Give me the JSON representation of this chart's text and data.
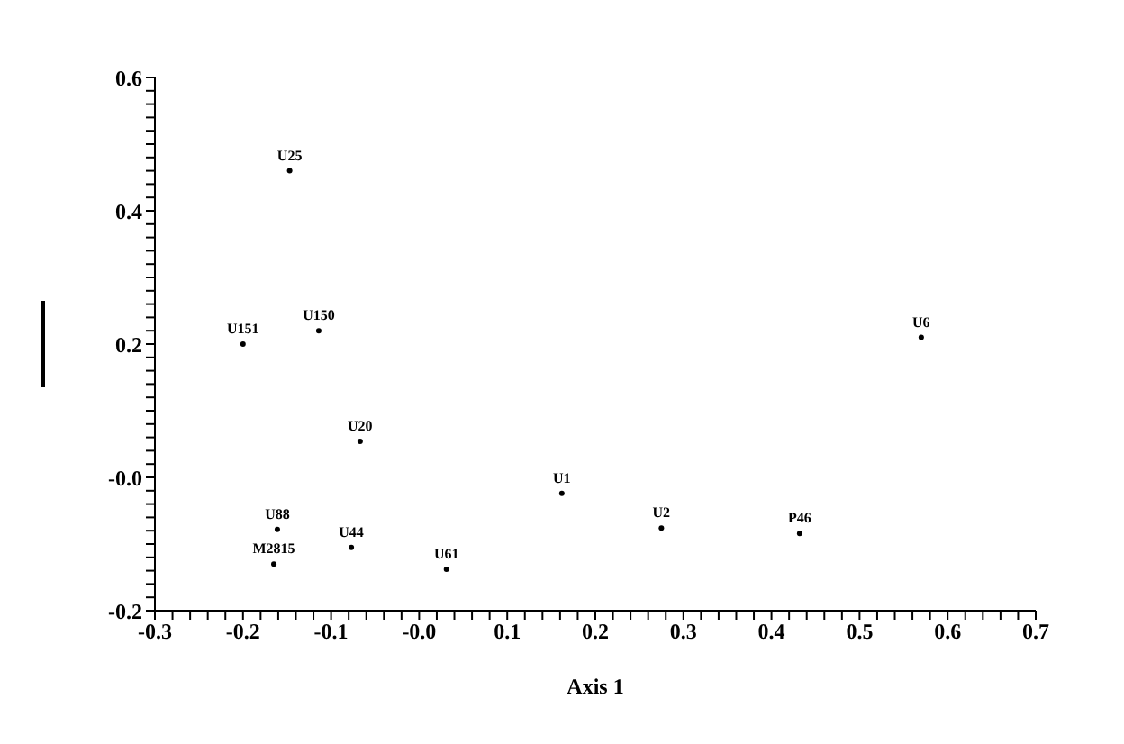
{
  "chart_data": {
    "type": "scatter",
    "xlabel": "Axis 1",
    "marker": "circle",
    "grid": false,
    "legend": false,
    "x": [
      -0.147,
      -0.114,
      -0.2,
      -0.067,
      0.57,
      0.162,
      0.275,
      0.432,
      -0.161,
      -0.165,
      -0.077,
      0.031
    ],
    "values": [
      0.46,
      0.22,
      0.2,
      0.054,
      0.21,
      -0.024,
      -0.076,
      -0.084,
      -0.078,
      -0.13,
      -0.105,
      -0.138
    ],
    "value_labels": [
      "U25",
      "U150",
      "U151",
      "U20",
      "U6",
      "U1",
      "U2",
      "P46",
      "U88",
      "M2815",
      "U44",
      "U61"
    ],
    "xlim": [
      -0.3,
      0.7
    ],
    "xticks": [
      -0.3,
      {
        "value": -0.28,
        "label": null
      },
      {
        "value": -0.26,
        "label": null
      },
      {
        "value": -0.24,
        "label": null
      },
      {
        "value": -0.22,
        "label": null
      },
      -0.2,
      {
        "value": -0.18,
        "label": null
      },
      {
        "value": -0.16,
        "label": null
      },
      {
        "value": -0.14,
        "label": null
      },
      {
        "value": -0.12,
        "label": null
      },
      -0.1,
      {
        "value": -0.08,
        "label": null
      },
      {
        "value": -0.06,
        "label": null
      },
      {
        "value": -0.04,
        "label": null
      },
      {
        "value": -0.02,
        "label": null
      },
      {
        "value": 0,
        "label": "-0.0"
      },
      {
        "value": 0.02,
        "label": null
      },
      {
        "value": 0.04,
        "label": null
      },
      {
        "value": 0.06,
        "label": null
      },
      {
        "value": 0.08,
        "label": null
      },
      0.1,
      {
        "value": 0.12,
        "label": null
      },
      {
        "value": 0.14,
        "label": null
      },
      {
        "value": 0.16,
        "label": null
      },
      {
        "value": 0.18,
        "label": null
      },
      0.2,
      {
        "value": 0.22,
        "label": null
      },
      {
        "value": 0.24,
        "label": null
      },
      {
        "value": 0.26,
        "label": null
      },
      {
        "value": 0.28,
        "label": null
      },
      0.3,
      {
        "value": 0.32,
        "label": null
      },
      {
        "value": 0.34,
        "label": null
      },
      {
        "value": 0.36,
        "label": null
      },
      {
        "value": 0.38,
        "label": null
      },
      0.4,
      {
        "value": 0.42,
        "label": null
      },
      {
        "value": 0.44,
        "label": null
      },
      {
        "value": 0.46,
        "label": null
      },
      {
        "value": 0.48,
        "label": null
      },
      0.5,
      {
        "value": 0.52,
        "label": null
      },
      {
        "value": 0.54,
        "label": null
      },
      {
        "value": 0.56,
        "label": null
      },
      {
        "value": 0.58,
        "label": null
      },
      0.6,
      {
        "value": 0.62,
        "label": null
      },
      {
        "value": 0.64,
        "label": null
      },
      {
        "value": 0.66,
        "label": null
      },
      {
        "value": 0.68,
        "label": null
      },
      0.7
    ],
    "ylim": [
      -0.2,
      0.6
    ],
    "yticks": [
      -0.2,
      {
        "value": -0.18,
        "label": null
      },
      {
        "value": -0.16,
        "label": null
      },
      {
        "value": -0.14,
        "label": null
      },
      {
        "value": -0.12,
        "label": null
      },
      {
        "value": -0.1,
        "label": null
      },
      {
        "value": -0.08,
        "label": null
      },
      {
        "value": -0.06,
        "label": null
      },
      {
        "value": -0.04,
        "label": null
      },
      {
        "value": -0.02,
        "label": null
      },
      {
        "value": 0,
        "label": "-0.0"
      },
      {
        "value": 0.02,
        "label": null
      },
      {
        "value": 0.04,
        "label": null
      },
      {
        "value": 0.06,
        "label": null
      },
      {
        "value": 0.08,
        "label": null
      },
      {
        "value": 0.1,
        "label": null
      },
      {
        "value": 0.12,
        "label": null
      },
      {
        "value": 0.14,
        "label": null
      },
      {
        "value": 0.16,
        "label": null
      },
      {
        "value": 0.18,
        "label": null
      },
      0.2,
      {
        "value": 0.22,
        "label": null
      },
      {
        "value": 0.24,
        "label": null
      },
      {
        "value": 0.26,
        "label": null
      },
      {
        "value": 0.28,
        "label": null
      },
      {
        "value": 0.3,
        "label": null
      },
      {
        "value": 0.32,
        "label": null
      },
      {
        "value": 0.34,
        "label": null
      },
      {
        "value": 0.36,
        "label": null
      },
      {
        "value": 0.38,
        "label": null
      },
      0.4,
      {
        "value": 0.42,
        "label": null
      },
      {
        "value": 0.44,
        "label": null
      },
      {
        "value": 0.46,
        "label": null
      },
      {
        "value": 0.48,
        "label": null
      },
      {
        "value": 0.5,
        "label": null
      },
      {
        "value": 0.52,
        "label": null
      },
      {
        "value": 0.54,
        "label": null
      },
      {
        "value": 0.56,
        "label": null
      },
      {
        "value": 0.58,
        "label": null
      },
      0.6
    ]
  }
}
